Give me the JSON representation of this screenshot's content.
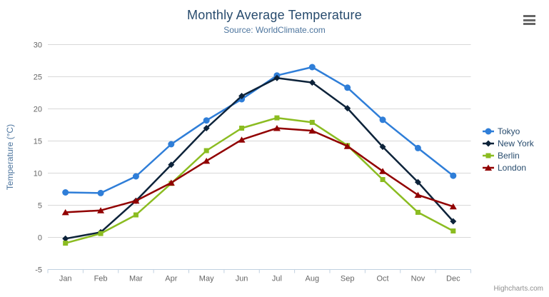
{
  "credits": "Highcharts.com",
  "colors": {
    "background": "#ffffff",
    "title_text": "#274b6d",
    "subtitle_text": "#4d759e",
    "axis_title": "#4d759e",
    "tick_label": "#666666",
    "grid_line": "#d8d8d8",
    "axis_line": "#c0d0e0",
    "legend_text": "#274b6d",
    "credits_text": "#909090",
    "icon": "#666666"
  },
  "chart_data": {
    "type": "line",
    "title": "Monthly Average Temperature",
    "subtitle": "Source: WorldClimate.com",
    "xlabel": "",
    "ylabel": "Temperature (°C)",
    "categories": [
      "Jan",
      "Feb",
      "Mar",
      "Apr",
      "May",
      "Jun",
      "Jul",
      "Aug",
      "Sep",
      "Oct",
      "Nov",
      "Dec"
    ],
    "series": [
      {
        "name": "Tokyo",
        "color": "#2f7ed8",
        "marker": "circle",
        "values": [
          7.0,
          6.9,
          9.5,
          14.5,
          18.2,
          21.5,
          25.2,
          26.5,
          23.3,
          18.3,
          13.9,
          9.6
        ]
      },
      {
        "name": "New York",
        "color": "#0d233a",
        "marker": "diamond",
        "values": [
          -0.2,
          0.8,
          5.7,
          11.3,
          17.0,
          22.0,
          24.8,
          24.1,
          20.1,
          14.1,
          8.6,
          2.5
        ]
      },
      {
        "name": "Berlin",
        "color": "#8bbc21",
        "marker": "square",
        "values": [
          -0.9,
          0.6,
          3.5,
          8.4,
          13.5,
          17.0,
          18.6,
          17.9,
          14.3,
          9.0,
          3.9,
          1.0
        ]
      },
      {
        "name": "London",
        "color": "#910000",
        "marker": "triangle",
        "values": [
          3.9,
          4.2,
          5.7,
          8.5,
          11.9,
          15.2,
          17.0,
          16.6,
          14.2,
          10.3,
          6.6,
          4.8
        ]
      }
    ],
    "ylim": [
      -5,
      30
    ],
    "ytick_step": 5,
    "grid": true,
    "legend_position": "right"
  }
}
